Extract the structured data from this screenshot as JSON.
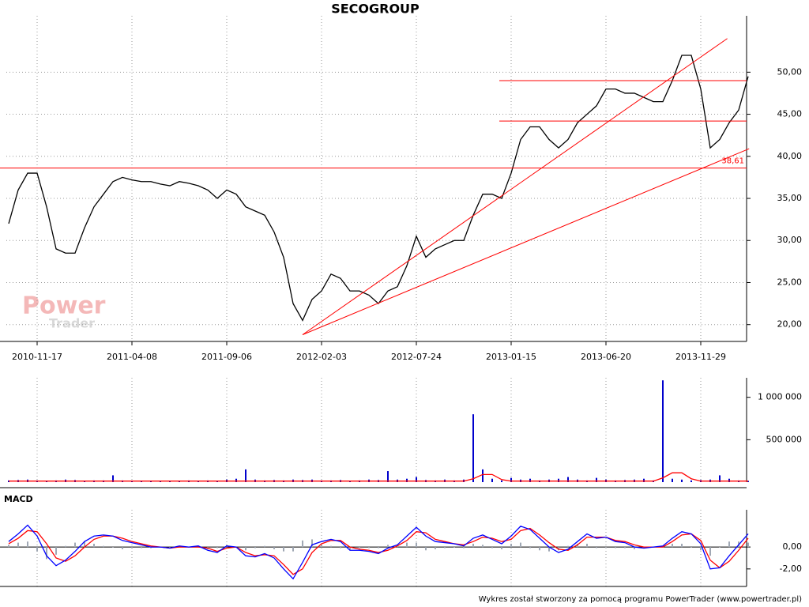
{
  "chart_data": [
    {
      "type": "line",
      "title": "SECOGROUP",
      "categories": [
        null,
        null,
        null,
        "2010-11-17",
        null,
        null,
        null,
        null,
        null,
        null,
        null,
        null,
        null,
        "2011-04-08",
        null,
        null,
        null,
        null,
        null,
        null,
        null,
        null,
        null,
        "2011-09-06",
        null,
        null,
        null,
        null,
        null,
        null,
        null,
        null,
        null,
        "2012-02-03",
        null,
        null,
        null,
        null,
        null,
        null,
        null,
        null,
        null,
        "2012-07-24",
        null,
        null,
        null,
        null,
        null,
        null,
        null,
        null,
        null,
        "2013-01-15",
        null,
        null,
        null,
        null,
        null,
        null,
        null,
        null,
        null,
        "2013-06-20",
        null,
        null,
        null,
        null,
        null,
        null,
        null,
        null,
        null,
        "2013-11-29",
        null,
        null,
        null,
        null,
        null
      ],
      "series": [
        {
          "color": "#000000",
          "values": [
            32,
            36,
            38,
            38,
            34,
            29,
            28.5,
            28.5,
            31.5,
            34,
            35.5,
            37,
            37.5,
            37.2,
            37,
            37,
            36.7,
            36.5,
            37,
            36.8,
            36.5,
            36,
            35,
            36,
            35.5,
            34,
            33.5,
            33,
            31,
            28,
            22.5,
            20.5,
            23,
            24,
            26,
            25.5,
            24,
            24,
            23.5,
            22.5,
            24,
            24.5,
            27,
            30.5,
            28,
            29,
            29.5,
            30,
            30,
            33,
            35.5,
            35.5,
            35,
            38,
            42,
            43.5,
            43.5,
            42,
            41,
            42,
            44,
            45,
            46,
            48,
            48,
            47.5,
            47.5,
            47,
            46.5,
            46.5,
            49,
            52,
            52,
            48,
            41,
            42,
            44,
            45.5,
            49.5
          ]
        }
      ],
      "ylim": [
        18,
        56.7
      ],
      "yticks": [
        {
          "value": 20,
          "label": "20,00"
        },
        {
          "value": 25,
          "label": "25,00"
        },
        {
          "value": 30,
          "label": "30,00"
        },
        {
          "value": 35,
          "label": "35,00"
        },
        {
          "value": 40,
          "label": "40,00"
        },
        {
          "value": 45,
          "label": "45,00"
        },
        {
          "value": 50,
          "label": "50,00"
        }
      ],
      "grid": true,
      "line_color": "#ff0000",
      "hlines": [
        {
          "value": 38.61,
          "label": "38,61"
        },
        {
          "value": 49,
          "from": 51.75
        },
        {
          "value": 44.2,
          "from": 51.75
        }
      ],
      "trendlines": [
        {
          "x": [
            31,
            75.8
          ],
          "y": [
            18.8,
            54
          ]
        },
        {
          "x": [
            31,
            78.1
          ],
          "y": [
            18.8,
            40.9
          ]
        }
      ],
      "watermark": [
        "Power",
        "Trader"
      ]
    },
    {
      "type": "bar",
      "series": [
        {
          "color": "#0000cc",
          "values": [
            20000,
            25000,
            30000,
            20000,
            15000,
            20000,
            30000,
            25000,
            15000,
            20000,
            20000,
            80000,
            20000,
            15000,
            15000,
            10000,
            15000,
            10000,
            15000,
            20000,
            15000,
            20000,
            15000,
            30000,
            40000,
            150000,
            30000,
            20000,
            25000,
            20000,
            30000,
            25000,
            30000,
            20000,
            20000,
            25000,
            15000,
            20000,
            30000,
            25000,
            130000,
            30000,
            40000,
            60000,
            25000,
            20000,
            30000,
            20000,
            30000,
            800000,
            150000,
            40000,
            20000,
            50000,
            30000,
            40000,
            20000,
            30000,
            40000,
            60000,
            30000,
            20000,
            50000,
            30000,
            20000,
            25000,
            30000,
            40000,
            20000,
            1200000,
            40000,
            30000,
            20000,
            25000,
            30000,
            80000,
            40000,
            20000,
            15000
          ]
        },
        {
          "type": "line",
          "color": "#ff0000",
          "values": [
            12000,
            12000,
            12000,
            12000,
            12000,
            12000,
            12000,
            12000,
            12000,
            12000,
            12000,
            12000,
            12000,
            12000,
            12000,
            12000,
            12000,
            12000,
            12000,
            12000,
            12000,
            12000,
            12000,
            12000,
            12000,
            12000,
            12000,
            12000,
            12000,
            12000,
            12000,
            12000,
            12000,
            12000,
            12000,
            12000,
            12000,
            12000,
            12000,
            12000,
            12000,
            12000,
            12000,
            12000,
            12000,
            12000,
            12000,
            12000,
            12000,
            40000,
            90000,
            90000,
            30000,
            12000,
            12000,
            12000,
            12000,
            12000,
            12000,
            12000,
            12000,
            12000,
            12000,
            12000,
            12000,
            12000,
            12000,
            12000,
            12000,
            50000,
            110000,
            110000,
            40000,
            12000,
            12000,
            12000,
            12000,
            12000,
            12000
          ]
        }
      ],
      "ylim": [
        0,
        1230000
      ],
      "yticks": [
        {
          "value": 500000,
          "label": "500 000"
        },
        {
          "value": 1000000,
          "label": "1 000 000"
        }
      ]
    },
    {
      "type": "line",
      "title": "MACD",
      "series": [
        {
          "type": "bar",
          "color": "#a0a8b4",
          "values": [
            0.2,
            0.4,
            0.5,
            -0.4,
            -1.1,
            -0.7,
            0.1,
            0.4,
            0.5,
            0.3,
            0.1,
            0,
            -0.2,
            -0.1,
            -0.1,
            -0.1,
            0,
            0,
            0.1,
            0,
            0.1,
            -0.2,
            -0.1,
            0.2,
            0,
            -0.3,
            -0.1,
            0.1,
            -0.2,
            -0.4,
            -0.4,
            0.6,
            0.7,
            0.2,
            0.1,
            -0.1,
            -0.3,
            -0.1,
            -0.1,
            -0.1,
            0.2,
            0.1,
            0.4,
            0.4,
            -0.3,
            -0.2,
            -0.1,
            0,
            -0.1,
            0.3,
            0.2,
            -0.1,
            -0.2,
            0.3,
            0.4,
            -0.1,
            -0.3,
            -0.4,
            -0.3,
            0.1,
            0.3,
            0.3,
            -0.1,
            0,
            -0.1,
            -0.1,
            -0.2,
            -0.1,
            0,
            0.1,
            0.3,
            0.3,
            0,
            -0.3,
            -0.8,
            0,
            0.5,
            0.5,
            0.4
          ]
        },
        {
          "color": "#ff0000",
          "values": [
            0.3,
            0.8,
            1.5,
            1.4,
            0.3,
            -1.0,
            -1.3,
            -0.8,
            0,
            0.7,
            1.0,
            1.0,
            0.8,
            0.5,
            0.3,
            0.1,
            0,
            -0.1,
            0,
            0,
            0,
            -0.1,
            -0.4,
            -0.1,
            0,
            -0.5,
            -0.8,
            -0.7,
            -0.8,
            -1.6,
            -2.5,
            -2.0,
            -0.5,
            0.3,
            0.6,
            0.6,
            0,
            -0.2,
            -0.3,
            -0.5,
            -0.3,
            0.1,
            0.6,
            1.4,
            1.3,
            0.7,
            0.5,
            0.3,
            0.2,
            0.5,
            0.9,
            0.8,
            0.5,
            0.7,
            1.5,
            1.7,
            1.1,
            0.4,
            -0.2,
            -0.3,
            0.2,
            0.9,
            0.9,
            0.9,
            0.6,
            0.5,
            0.2,
            0,
            0,
            0,
            0.5,
            1.1,
            1.2,
            0.6,
            -1.2,
            -1.9,
            -1.3,
            -0.3,
            0.8
          ]
        },
        {
          "color": "#0000ff",
          "values": [
            0.5,
            1.2,
            2,
            1,
            -0.8,
            -1.7,
            -1.2,
            -0.4,
            0.5,
            1,
            1.1,
            1,
            0.6,
            0.4,
            0.2,
            0,
            0,
            -0.1,
            0.1,
            0,
            0.1,
            -0.3,
            -0.5,
            0.1,
            0,
            -0.8,
            -0.9,
            -0.6,
            -1,
            -2,
            -2.9,
            -1.4,
            0.2,
            0.5,
            0.7,
            0.5,
            -0.3,
            -0.3,
            -0.4,
            -0.6,
            -0.1,
            0.2,
            1,
            1.8,
            1,
            0.5,
            0.4,
            0.3,
            0.1,
            0.8,
            1.1,
            0.7,
            0.3,
            1,
            1.9,
            1.6,
            0.8,
            0,
            -0.5,
            -0.2,
            0.5,
            1.2,
            0.8,
            0.9,
            0.5,
            0.4,
            0,
            -0.1,
            0,
            0.1,
            0.8,
            1.4,
            1.2,
            0.3,
            -2,
            -1.9,
            -0.8,
            0.2,
            1.2
          ]
        }
      ],
      "ylim": [
        -3.6,
        3.4
      ],
      "yticks": [
        {
          "value": 0,
          "label": "0,00"
        },
        {
          "value": -2,
          "label": "-2,00"
        }
      ]
    }
  ],
  "footer": "Wykres został stworzony za pomocą programu PowerTrader (www.powertrader.pl)"
}
